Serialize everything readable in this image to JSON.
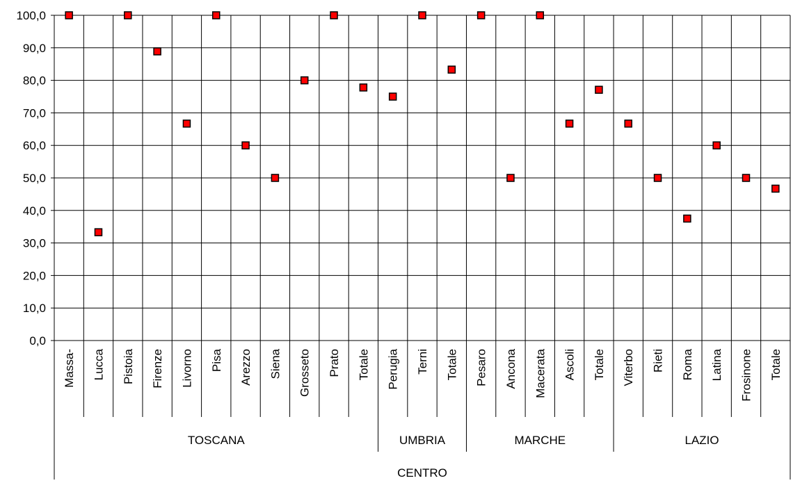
{
  "chart_data": {
    "type": "scatter",
    "title": "",
    "xlabel": "",
    "ylabel": "",
    "ylim": [
      0,
      100
    ],
    "y_ticks": [
      "0,0",
      "10,0",
      "20,0",
      "30,0",
      "40,0",
      "50,0",
      "60,0",
      "70,0",
      "80,0",
      "90,0",
      "100,0"
    ],
    "grid": true,
    "legend": "none",
    "marker": {
      "shape": "square",
      "fill": "#ff0000",
      "stroke": "#000000"
    },
    "categories": [
      "Massa-",
      "Lucca",
      "Pistoia",
      "Firenze",
      "Livorno",
      "Pisa",
      "Arezzo",
      "Siena",
      "Grosseto",
      "Prato",
      "Totale",
      "Perugia",
      "Terni",
      "Totale",
      "Pesaro",
      "Ancona",
      "Macerata",
      "Ascoli",
      "Totale",
      "Viterbo",
      "Rieti",
      "Roma",
      "Latina",
      "Frosinone",
      "Totale"
    ],
    "values": [
      100,
      33.3,
      100,
      88.9,
      66.7,
      100,
      60,
      50,
      80,
      100,
      77.8,
      75,
      100,
      83.3,
      100,
      50,
      100,
      66.7,
      77.1,
      66.7,
      50,
      37.5,
      60,
      50,
      46.7
    ],
    "groups": [
      {
        "label": "TOSCANA",
        "span": 11
      },
      {
        "label": "UMBRIA",
        "span": 3
      },
      {
        "label": "MARCHE",
        "span": 5
      },
      {
        "label": "LAZIO",
        "span": 6
      }
    ],
    "super_group": "CENTRO"
  }
}
